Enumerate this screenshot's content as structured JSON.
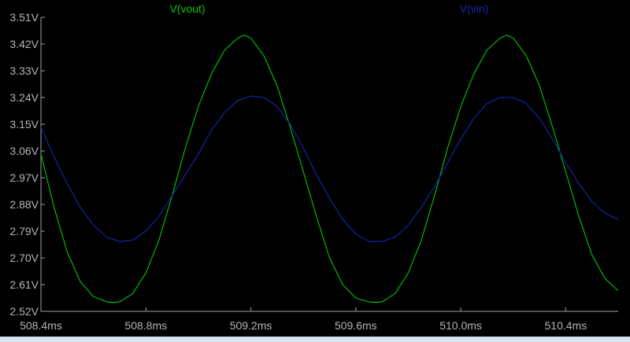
{
  "chart_data": {
    "type": "line",
    "title": "",
    "xlabel": "",
    "ylabel": "",
    "xlim": [
      508.4,
      510.6
    ],
    "ylim": [
      2.52,
      3.51
    ],
    "x_unit": "ms",
    "y_unit": "V",
    "grid": false,
    "legend_placement": "top",
    "x_ticks": [
      "508.4ms",
      "508.8ms",
      "509.2ms",
      "509.6ms",
      "510.0ms",
      "510.4ms"
    ],
    "x_tick_values": [
      508.4,
      508.8,
      509.2,
      509.6,
      510.0,
      510.4
    ],
    "y_ticks": [
      "3.51V",
      "3.42V",
      "3.33V",
      "3.24V",
      "3.15V",
      "3.06V",
      "2.97V",
      "2.88V",
      "2.79V",
      "2.70V",
      "2.61V",
      "2.52V"
    ],
    "y_tick_values": [
      3.51,
      3.42,
      3.33,
      3.24,
      3.15,
      3.06,
      2.97,
      2.88,
      2.79,
      2.7,
      2.61,
      2.52
    ],
    "series": [
      {
        "name": "V(vout)",
        "color": "#00c800",
        "x": [
          508.4,
          508.45,
          508.5,
          508.55,
          508.6,
          508.65,
          508.675,
          508.7,
          508.75,
          508.8,
          508.85,
          508.9,
          508.95,
          509.0,
          509.05,
          509.1,
          509.15,
          509.175,
          509.2,
          509.25,
          509.3,
          509.35,
          509.4,
          509.45,
          509.5,
          509.55,
          509.6,
          509.65,
          509.675,
          509.7,
          509.75,
          509.8,
          509.85,
          509.9,
          509.95,
          510.0,
          510.05,
          510.1,
          510.15,
          510.175,
          510.2,
          510.25,
          510.3,
          510.35,
          510.4,
          510.45,
          510.5,
          510.55,
          510.6
        ],
        "y": [
          3.05,
          2.87,
          2.72,
          2.62,
          2.57,
          2.552,
          2.55,
          2.552,
          2.58,
          2.65,
          2.76,
          2.91,
          3.07,
          3.21,
          3.32,
          3.4,
          3.44,
          3.45,
          3.44,
          3.38,
          3.28,
          3.14,
          2.99,
          2.84,
          2.7,
          2.61,
          2.565,
          2.552,
          2.55,
          2.552,
          2.58,
          2.65,
          2.76,
          2.91,
          3.07,
          3.21,
          3.32,
          3.4,
          3.44,
          3.45,
          3.44,
          3.38,
          3.28,
          3.14,
          2.99,
          2.84,
          2.71,
          2.63,
          2.59
        ]
      },
      {
        "name": "V(vin)",
        "color": "#1428b4",
        "x": [
          508.4,
          508.45,
          508.5,
          508.55,
          508.6,
          508.65,
          508.7,
          508.75,
          508.8,
          508.85,
          508.9,
          508.95,
          509.0,
          509.05,
          509.1,
          509.15,
          509.2,
          509.25,
          509.3,
          509.35,
          509.4,
          509.45,
          509.5,
          509.55,
          509.6,
          509.65,
          509.7,
          509.75,
          509.8,
          509.85,
          509.9,
          509.95,
          510.0,
          510.05,
          510.1,
          510.15,
          510.2,
          510.25,
          510.3,
          510.35,
          510.4,
          510.45,
          510.5,
          510.55,
          510.6
        ],
        "y": [
          3.14,
          3.04,
          2.95,
          2.87,
          2.81,
          2.77,
          2.755,
          2.76,
          2.79,
          2.84,
          2.91,
          2.98,
          3.05,
          3.13,
          3.19,
          3.23,
          3.245,
          3.24,
          3.21,
          3.15,
          3.07,
          2.98,
          2.9,
          2.83,
          2.78,
          2.755,
          2.755,
          2.77,
          2.81,
          2.87,
          2.94,
          3.02,
          3.1,
          3.17,
          3.22,
          3.24,
          3.24,
          3.22,
          3.17,
          3.1,
          3.02,
          2.95,
          2.89,
          2.85,
          2.83
        ]
      }
    ]
  }
}
